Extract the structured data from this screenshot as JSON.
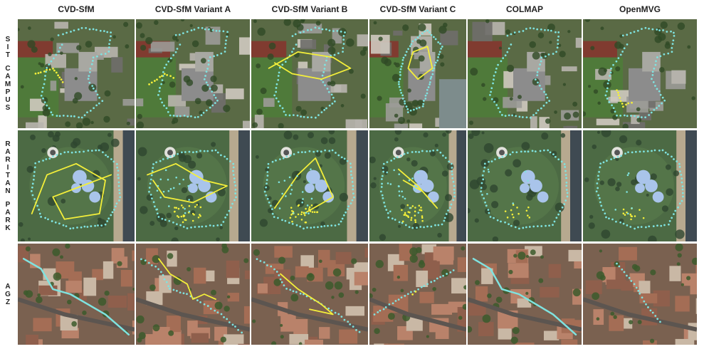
{
  "columns": [
    {
      "label": "CVD-SfM"
    },
    {
      "label": "CVD-SfM Variant A"
    },
    {
      "label": "CVD-SfM Variant B"
    },
    {
      "label": "CVD-SfM Variant C"
    },
    {
      "label": "COLMAP"
    },
    {
      "label": "OpenMVG"
    }
  ],
  "rows": [
    {
      "label": "SIT CAMPUS",
      "words": [
        "SIT",
        "CAMPUS"
      ]
    },
    {
      "label": "RARITAN PARK",
      "words": [
        "RARITAN",
        "PARK"
      ]
    },
    {
      "label": "AGZ",
      "words": [
        "AGZ"
      ]
    }
  ],
  "colors": {
    "ground_truth": "#7fe3e0",
    "estimate": "#f4ef3a",
    "campus_bg": "#5a6a45",
    "park_bg": "#4c6a44",
    "city_bg": "#7a6150",
    "water": "#7d8c8c"
  }
}
